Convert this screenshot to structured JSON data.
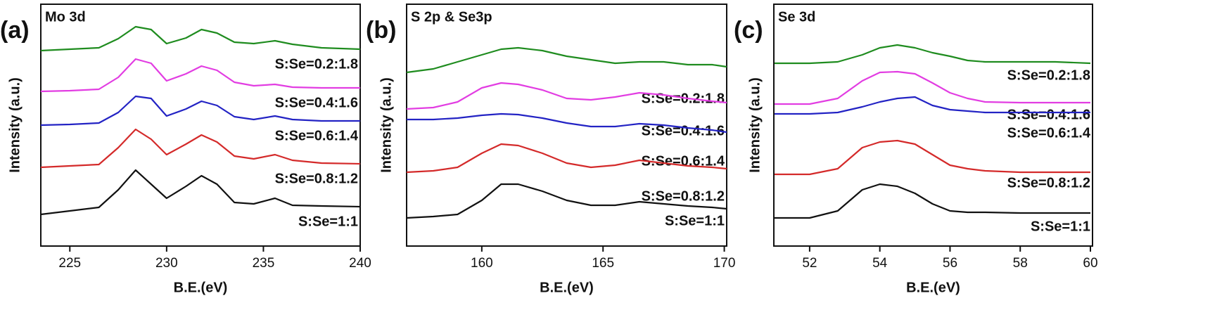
{
  "chart_data": [
    {
      "type": "line",
      "panel_label": "(a)",
      "title": "Mo 3d",
      "xlabel": "B.E.(eV)",
      "ylabel": "Intensity (a.u.)",
      "xlim": [
        223.5,
        240
      ],
      "xticks": [
        225,
        230,
        235,
        240
      ],
      "ylim": [
        0,
        344
      ],
      "x": [
        223.5,
        225,
        226.5,
        227.5,
        228.4,
        229.2,
        230,
        231,
        231.8,
        232.6,
        233.5,
        234.5,
        235.6,
        236.5,
        238,
        240
      ],
      "series": [
        {
          "name": "S:Se=0.2:1.8",
          "color": "#1f8c1f",
          "values": [
            278,
            280,
            282,
            295,
            312,
            308,
            288,
            296,
            308,
            303,
            290,
            288,
            292,
            287,
            282,
            280
          ]
        },
        {
          "name": "S:Se=0.4:1.6",
          "color": "#e23de2",
          "values": [
            220,
            221,
            223,
            240,
            266,
            260,
            235,
            245,
            256,
            250,
            233,
            228,
            230,
            226,
            225,
            225
          ]
        },
        {
          "name": "S:Se=0.6:1.4",
          "color": "#2323c4",
          "values": [
            172,
            173,
            175,
            190,
            213,
            210,
            185,
            195,
            206,
            200,
            184,
            180,
            185,
            180,
            178,
            178
          ]
        },
        {
          "name": "S:Se=0.8:1.2",
          "color": "#d42a2a",
          "values": [
            112,
            114,
            116,
            140,
            166,
            152,
            130,
            145,
            158,
            148,
            128,
            124,
            130,
            122,
            118,
            117
          ]
        },
        {
          "name": "S:Se=1:1",
          "color": "#111111",
          "values": [
            45,
            50,
            55,
            80,
            108,
            88,
            68,
            85,
            100,
            88,
            62,
            60,
            68,
            58,
            57,
            56
          ]
        }
      ]
    },
    {
      "type": "line",
      "panel_label": "(b)",
      "title": "S 2p & Se3p",
      "xlabel": "B.E.(eV)",
      "ylabel": "Intensity (a.u.)",
      "xlim": [
        156.9,
        170.1
      ],
      "xticks": [
        160,
        165,
        170
      ],
      "ylim": [
        0,
        344
      ],
      "x": [
        156.9,
        158,
        159,
        160,
        160.8,
        161.5,
        162.5,
        163.5,
        164.5,
        165.5,
        166.5,
        167.5,
        168.5,
        169.5,
        170.1
      ],
      "series": [
        {
          "name": "S:Se=0.2:1.8",
          "color": "#1f8c1f",
          "values": [
            247,
            252,
            262,
            272,
            280,
            282,
            278,
            270,
            265,
            260,
            262,
            262,
            258,
            258,
            255
          ]
        },
        {
          "name": "S:Se=0.4:1.6",
          "color": "#e23de2",
          "values": [
            195,
            197,
            205,
            225,
            232,
            230,
            222,
            210,
            208,
            212,
            218,
            215,
            210,
            206,
            204
          ]
        },
        {
          "name": "S:Se=0.6:1.4",
          "color": "#2323c4",
          "values": [
            180,
            180,
            182,
            186,
            188,
            187,
            182,
            175,
            170,
            170,
            174,
            172,
            168,
            165,
            162
          ]
        },
        {
          "name": "S:Se=0.8:1.2",
          "color": "#d42a2a",
          "values": [
            105,
            107,
            112,
            132,
            145,
            143,
            132,
            118,
            112,
            115,
            122,
            118,
            114,
            112,
            110
          ]
        },
        {
          "name": "S:Se=1:1",
          "color": "#111111",
          "values": [
            40,
            42,
            45,
            65,
            88,
            88,
            78,
            65,
            58,
            58,
            63,
            60,
            57,
            55,
            53
          ]
        }
      ]
    },
    {
      "type": "line",
      "panel_label": "(c)",
      "title": "Se 3d",
      "xlabel": "B.E.(eV)",
      "ylabel": "Intensity (a.u.)",
      "xlim": [
        50.98,
        60.06
      ],
      "xticks": [
        52,
        54,
        56,
        58,
        60
      ],
      "ylim": [
        0,
        344
      ],
      "x": [
        51,
        52,
        52.8,
        53.5,
        54,
        54.5,
        55,
        55.5,
        56,
        56.5,
        57,
        58,
        59,
        60
      ],
      "series": [
        {
          "name": "S:Se=0.2:1.8",
          "color": "#1f8c1f",
          "values": [
            260,
            260,
            262,
            272,
            282,
            286,
            282,
            275,
            270,
            264,
            262,
            262,
            262,
            260
          ]
        },
        {
          "name": "S:Se=0.4:1.6",
          "color": "#e23de2",
          "values": [
            202,
            202,
            210,
            235,
            247,
            248,
            245,
            232,
            218,
            210,
            205,
            204,
            204,
            204
          ]
        },
        {
          "name": "S:Se=0.6:1.4",
          "color": "#2323c4",
          "values": [
            188,
            188,
            190,
            198,
            205,
            210,
            212,
            200,
            194,
            192,
            190,
            190,
            190,
            190
          ]
        },
        {
          "name": "S:Se=0.8:1.2",
          "color": "#d42a2a",
          "values": [
            102,
            102,
            110,
            140,
            148,
            150,
            145,
            130,
            115,
            110,
            107,
            105,
            105,
            105
          ]
        },
        {
          "name": "S:Se=1:1",
          "color": "#111111",
          "values": [
            40,
            40,
            50,
            80,
            88,
            85,
            75,
            60,
            50,
            48,
            48,
            47,
            47,
            47
          ]
        }
      ]
    }
  ]
}
